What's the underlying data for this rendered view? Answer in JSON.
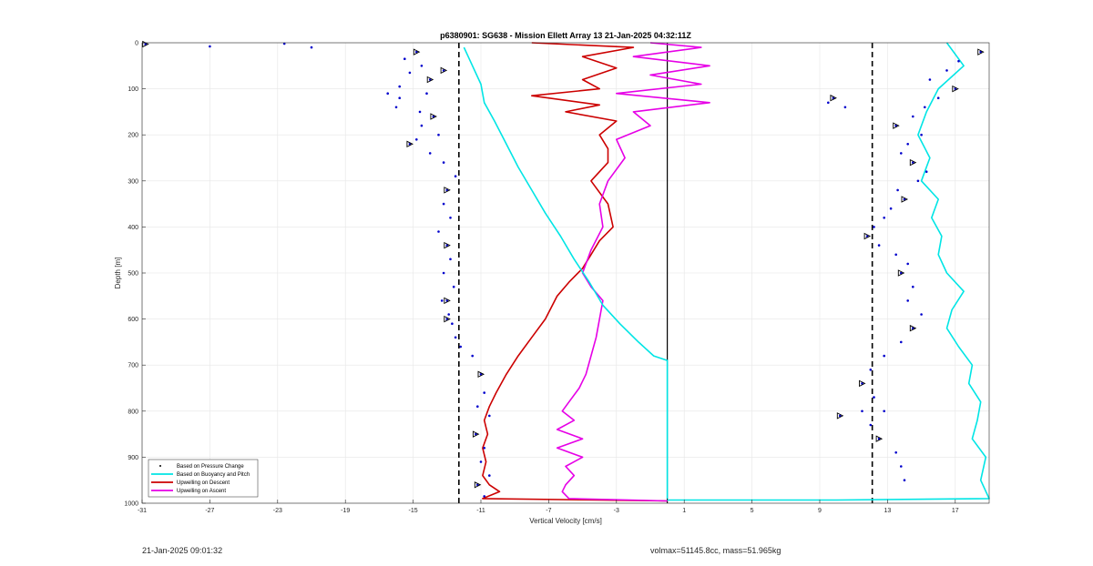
{
  "chart_data": {
    "type": "line",
    "title": "p6380901: SG638 - Mission Ellett Array 13 21-Jan-2025 04:32:11Z",
    "xlabel": "Vertical Velocity [cm/s]",
    "ylabel": "Depth [m]",
    "xlim": [
      -31,
      19
    ],
    "ylim": [
      1000,
      0
    ],
    "y_reversed": true,
    "grid": true,
    "x_ticks": [
      -31,
      -27,
      -23,
      -19,
      -15,
      -11,
      -7,
      -3,
      1,
      5,
      9,
      13,
      17
    ],
    "y_ticks": [
      0,
      100,
      200,
      300,
      400,
      500,
      600,
      700,
      800,
      900,
      1000
    ],
    "legend_placement": "bottom-left",
    "legend": [
      {
        "label": "Based on Pressure Change",
        "color": "#000000",
        "style": "dot"
      },
      {
        "label": "Based on Buoyancy and Pitch",
        "color": "#00e5e5",
        "style": "line"
      },
      {
        "label": "Upwelling on Descent",
        "color": "#cc0000",
        "style": "line"
      },
      {
        "label": "Upwelling on Ascent",
        "color": "#e600e6",
        "style": "line"
      }
    ],
    "reference_lines": [
      {
        "x": -12.3,
        "style": "dashed",
        "color": "#000000"
      },
      {
        "x": 12.1,
        "style": "dashed",
        "color": "#000000"
      },
      {
        "x": 0,
        "style": "solid",
        "color": "#000000"
      }
    ],
    "series": [
      {
        "name": "Upwelling on Descent",
        "color": "#cc0000",
        "x": [
          -8,
          -2,
          -5,
          -3,
          -5,
          -4,
          -8,
          -4,
          -6,
          -3,
          -4,
          -3.5,
          -3.5,
          -4.5,
          -3.5,
          -3.2,
          -4.0,
          -4.5,
          -5.0,
          -5.8,
          -6.5,
          -7.2,
          -8.0,
          -8.8,
          -9.5,
          -10.1,
          -10.5,
          -10.8,
          -10.6,
          -10.9,
          -10.7,
          -10.9,
          -10.5,
          -9.9,
          -10.9,
          0
        ],
        "y": [
          0,
          10,
          30,
          55,
          80,
          100,
          115,
          135,
          150,
          170,
          200,
          230,
          260,
          300,
          350,
          400,
          430,
          460,
          490,
          520,
          550,
          600,
          640,
          680,
          720,
          760,
          790,
          820,
          850,
          880,
          910,
          940,
          960,
          975,
          990,
          995
        ]
      },
      {
        "name": "Upwelling on Ascent",
        "color": "#e600e6",
        "x": [
          -1,
          2,
          -2,
          2.5,
          -1,
          2,
          -3,
          2.5,
          -2,
          -1,
          -3,
          -2.5,
          -3.5,
          -4.0,
          -3.8,
          -4.5,
          -5.0,
          -4.5,
          -3.8,
          -4.0,
          -4.2,
          -4.5,
          -4.8,
          -5.2,
          -5.8,
          -6.2,
          -5.5,
          -6.5,
          -5.0,
          -6.5,
          -5.0,
          -6.0,
          -5.5,
          -6.0,
          -6.2,
          -5.8,
          0
        ],
        "y": [
          0,
          10,
          30,
          50,
          70,
          90,
          110,
          130,
          150,
          180,
          210,
          250,
          300,
          350,
          400,
          450,
          500,
          530,
          560,
          600,
          640,
          680,
          720,
          750,
          780,
          800,
          820,
          840,
          860,
          880,
          900,
          920,
          940,
          960,
          975,
          990,
          995
        ]
      },
      {
        "name": "Based on Buoyancy and Pitch (descent)",
        "color": "#00e5e5",
        "x": [
          -12.0,
          -11.5,
          -11.0,
          -10.8,
          -10.2,
          -9.5,
          -8.8,
          -8.0,
          -7.2,
          -6.3,
          -5.5,
          -4.6,
          -3.8,
          -2.8,
          -1.7,
          -0.8,
          0,
          0,
          0
        ],
        "y": [
          10,
          50,
          90,
          130,
          170,
          220,
          270,
          320,
          370,
          420,
          470,
          520,
          570,
          610,
          650,
          680,
          690,
          800,
          990
        ]
      },
      {
        "name": "Based on Buoyancy and Pitch (ascent)",
        "color": "#00e5e5",
        "x": [
          0,
          5,
          10,
          19,
          18.5,
          18.8,
          18.0,
          18.3,
          18.5,
          17.8,
          18.0,
          17.2,
          16.5,
          16.8,
          17.5,
          16.5,
          16.0,
          16.2,
          15.6,
          16.0,
          15.0,
          15.5,
          14.8,
          15.3,
          16.0,
          17.5,
          16.5
        ],
        "y": [
          993,
          993,
          993,
          990,
          950,
          900,
          860,
          820,
          780,
          740,
          700,
          660,
          620,
          580,
          540,
          500,
          460,
          420,
          380,
          340,
          300,
          250,
          200,
          150,
          100,
          50,
          0
        ]
      }
    ],
    "scatter": [
      {
        "name": "Based on Pressure Change (descent)",
        "color": "#0000cc",
        "x": [
          -30.8,
          -27.0,
          -22.6,
          -21.0,
          -14.8,
          -15.5,
          -14.5,
          -15.2,
          -14.0,
          -15.8,
          -16.5,
          -15.8,
          -13.2,
          -14.2,
          -16.0,
          -14.6,
          -13.8,
          -14.5,
          -13.5,
          -14.8,
          -15.2,
          -14.0,
          -13.2,
          -12.5,
          -13.0,
          -13.2,
          -12.8,
          -13.5,
          -13.0,
          -12.8,
          -13.2,
          -12.6,
          -13.0,
          -12.9,
          -12.7,
          -13.3,
          -13.0,
          -12.5,
          -12.2,
          -11.5,
          -11.0,
          -10.8,
          -11.2,
          -10.5,
          -11.3,
          -10.8,
          -11.0,
          -10.5,
          -11.2,
          -10.8
        ],
        "y": [
          3,
          8,
          2,
          10,
          20,
          35,
          50,
          65,
          80,
          95,
          110,
          120,
          60,
          110,
          140,
          150,
          160,
          180,
          200,
          210,
          220,
          240,
          260,
          290,
          320,
          350,
          380,
          410,
          440,
          470,
          500,
          530,
          560,
          590,
          610,
          560,
          600,
          640,
          660,
          680,
          720,
          760,
          790,
          810,
          850,
          880,
          910,
          940,
          960,
          985
        ]
      },
      {
        "name": "Based on Pressure Change (ascent)",
        "color": "#0000cc",
        "x": [
          18.5,
          17.2,
          16.5,
          15.5,
          17.0,
          16.0,
          15.2,
          14.5,
          13.5,
          15.0,
          14.2,
          13.8,
          14.5,
          15.3,
          14.8,
          13.6,
          14.0,
          13.2,
          12.8,
          12.2,
          11.8,
          12.5,
          13.5,
          14.2,
          13.8,
          14.5,
          14.2,
          15.0,
          14.5,
          13.8,
          12.8,
          12.0,
          11.5,
          12.2,
          12.8,
          12.0,
          12.5,
          13.5,
          13.8,
          14.0,
          9.8,
          9.5,
          10.5,
          11.5,
          10.2
        ],
        "y": [
          20,
          40,
          60,
          80,
          100,
          120,
          140,
          160,
          180,
          200,
          220,
          240,
          260,
          280,
          300,
          320,
          340,
          360,
          380,
          400,
          420,
          440,
          460,
          480,
          500,
          530,
          560,
          590,
          620,
          650,
          680,
          710,
          740,
          770,
          800,
          830,
          860,
          890,
          920,
          950,
          120,
          130,
          140,
          800,
          810
        ]
      }
    ]
  },
  "footer": {
    "timestamp": "21-Jan-2025 09:01:32",
    "vol_mass": "volmax=51145.8cc, mass=51.965kg"
  }
}
